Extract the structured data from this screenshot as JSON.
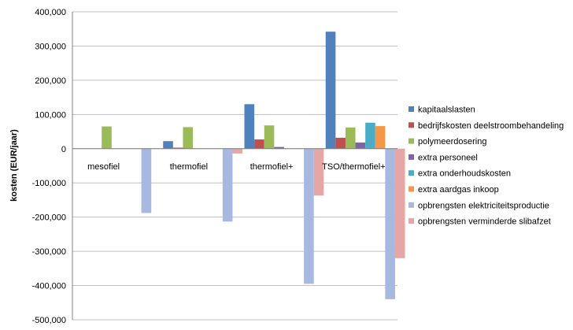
{
  "chart_data": {
    "type": "bar",
    "title": "",
    "xlabel": "",
    "ylabel": "kosten (EUR/jaar)",
    "ylim": [
      -500000,
      400000
    ],
    "yticks": [
      400000,
      300000,
      200000,
      100000,
      0,
      -100000,
      -200000,
      -300000,
      -400000,
      -500000
    ],
    "ytick_labels": [
      "400,000",
      "300,000",
      "200,000",
      "100,000",
      "0",
      "-100,000",
      "-200,000",
      "-300,000",
      "-400,000",
      "-500,000"
    ],
    "grid": "horizontal",
    "legend_position": "right",
    "categories": [
      "mesofiel",
      "thermofiel",
      "thermofiel+",
      "TSO/thermofiel+"
    ],
    "series": [
      {
        "name": "kapitaalslasten",
        "color": "#4F81BD",
        "values": [
          0,
          22000,
          130000,
          342000
        ]
      },
      {
        "name": "bedrijfskosten deelstroombehandeling",
        "color": "#C0504D",
        "values": [
          0,
          3000,
          27000,
          32000
        ]
      },
      {
        "name": "polymeerdosering",
        "color": "#9BBB59",
        "values": [
          65000,
          63000,
          68000,
          62000
        ]
      },
      {
        "name": "extra personeel",
        "color": "#8064A2",
        "values": [
          0,
          0,
          5000,
          18000
        ]
      },
      {
        "name": "extra onderhoudskosten",
        "color": "#4BACC6",
        "values": [
          0,
          0,
          0,
          76000
        ]
      },
      {
        "name": "extra aardgas inkoop",
        "color": "#F79646",
        "values": [
          0,
          0,
          0,
          66000
        ]
      },
      {
        "name": "opbrengsten elektriciteitsproductie",
        "color": "#A7B9E0",
        "values": [
          -188000,
          -213000,
          -395000,
          -440000
        ]
      },
      {
        "name": "opbrengsten verminderde slibafzet",
        "color": "#E6A6A4",
        "values": [
          0,
          -14000,
          -137000,
          -320000
        ]
      }
    ]
  }
}
